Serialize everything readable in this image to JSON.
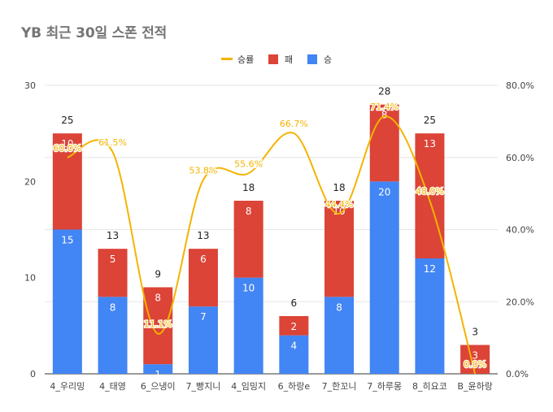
{
  "chart_data": {
    "type": "bar",
    "title": "YB 최근 30일 스폰 전적",
    "categories": [
      "4_우리밍",
      "4_태영",
      "6_으냉이",
      "7_빵지니",
      "4_임밍지",
      "6_하랑e",
      "7_한꼬니",
      "7_하루몽",
      "8_히요코",
      "B_윤하랑"
    ],
    "series": [
      {
        "name": "승",
        "color": "#4285f4",
        "values": [
          15,
          8,
          1,
          7,
          10,
          4,
          8,
          20,
          12,
          0
        ]
      },
      {
        "name": "패",
        "color": "#db4437",
        "values": [
          10,
          5,
          8,
          6,
          8,
          2,
          10,
          8,
          13,
          3
        ]
      }
    ],
    "totals": [
      25,
      13,
      9,
      13,
      18,
      6,
      18,
      28,
      25,
      3
    ],
    "line_series": {
      "name": "승률",
      "color": "#f4b400",
      "values": [
        60.0,
        61.5,
        11.1,
        53.8,
        55.6,
        66.7,
        44.4,
        71.4,
        48.0,
        0.0
      ],
      "labels": [
        "60.0%",
        "61.5%",
        "11.1%",
        "53.8%",
        "55.6%",
        "66.7%",
        "44.4%",
        "71.4%",
        "48.0%",
        "0.0%"
      ]
    },
    "legend_order": [
      "승률",
      "패",
      "승"
    ],
    "legend_position": "top",
    "y_left": {
      "min": 0,
      "max": 30,
      "ticks": [
        0,
        10,
        20,
        30
      ]
    },
    "y_right": {
      "min": 0,
      "max": 80,
      "ticks": [
        "0.0%",
        "20.0%",
        "40.0%",
        "60.0%",
        "80.0%"
      ]
    },
    "grid": true
  }
}
